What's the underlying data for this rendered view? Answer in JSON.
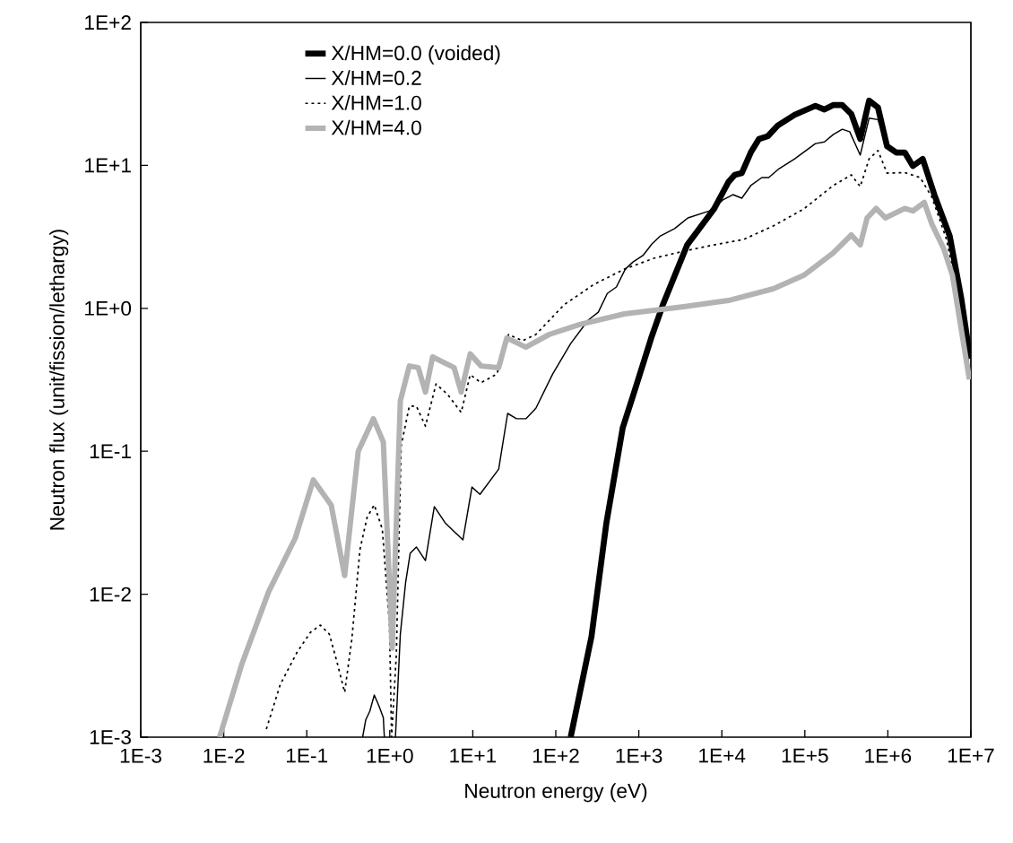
{
  "chart_data": {
    "type": "line",
    "xlabel": "Neutron energy (eV)",
    "ylabel": "Neutron flux (unit/fission/lethargy)",
    "log": "xy",
    "legend": "top left",
    "xlim": [
      0.001,
      10000000
    ],
    "ylim": [
      0.001,
      100
    ],
    "xticks": [
      {
        "value": 0.001,
        "label": "1E-3"
      },
      {
        "value": 0.01,
        "label": "1E-2"
      },
      {
        "value": 0.1,
        "label": "1E-1"
      },
      {
        "value": 1,
        "label": "1E+0"
      },
      {
        "value": 10,
        "label": "1E+1"
      },
      {
        "value": 100,
        "label": "1E+2"
      },
      {
        "value": 1000,
        "label": "1E+3"
      },
      {
        "value": 10000,
        "label": "1E+4"
      },
      {
        "value": 100000,
        "label": "1E+5"
      },
      {
        "value": 1000000,
        "label": "1E+6"
      },
      {
        "value": 10000000,
        "label": "1E+7"
      }
    ],
    "yticks": [
      {
        "value": 0.001,
        "label": "1E-3"
      },
      {
        "value": 0.01,
        "label": "1E-2"
      },
      {
        "value": 0.1,
        "label": "1E-1"
      },
      {
        "value": 1,
        "label": "1E+0"
      },
      {
        "value": 10,
        "label": "1E+1"
      },
      {
        "value": 100,
        "label": "1E+2"
      }
    ],
    "series": [
      {
        "name": "X/HM=0.0 (voided)",
        "color": "#000000",
        "line_style": "solid",
        "x": [
          151,
          269,
          407,
          640,
          881,
          1410,
          1950,
          3830,
          8050,
          12000,
          14300,
          17400,
          22300,
          28000,
          35800,
          47100,
          75500,
          134000,
          172000,
          219000,
          282000,
          363000,
          465000,
          594000,
          760000,
          977000,
          1260000,
          1600000,
          2000000,
          2630000,
          3630000,
          5560000,
          7670000,
          9800000
        ],
        "values": [
          0.001,
          0.00505,
          0.0316,
          0.146,
          0.26,
          0.62,
          1.06,
          2.78,
          4.95,
          7.65,
          8.58,
          8.83,
          12.3,
          15.3,
          16.0,
          19.0,
          22.6,
          26.1,
          24.6,
          26.4,
          26.4,
          22.9,
          15.3,
          28.4,
          25.4,
          13.6,
          12.3,
          12.3,
          9.9,
          11.1,
          6.24,
          3.21,
          1.17,
          0.444
        ]
      },
      {
        "name": "X/HM=0.2",
        "color": "#000000",
        "line_style": "solid",
        "x": [
          0.471,
          0.513,
          0.575,
          0.65,
          0.74,
          0.836,
          0.86,
          1.0,
          1.17,
          1.34,
          1.55,
          1.76,
          2.09,
          2.69,
          3.44,
          4.64,
          7.6,
          9.77,
          12.2,
          20.5,
          26.3,
          33.6,
          43.6,
          57.5,
          91.6,
          151,
          245,
          325,
          417,
          537,
          687,
          851,
          1120,
          1440,
          1820,
          2700,
          3900,
          7250,
          10300,
          13600,
          17400,
          22300,
          30300,
          36700,
          49000,
          75500,
          134000,
          172000,
          219000,
          282000,
          347000,
          465000,
          594000,
          760000,
          977000,
          1260000,
          1600000,
          2000000,
          2630000,
          3630000,
          5560000,
          7670000,
          9800000
        ],
        "values": [
          0.001,
          0.00132,
          0.00152,
          0.00197,
          0.00166,
          0.00137,
          0.001,
          null,
          0.001,
          0.00526,
          0.012,
          0.0193,
          0.0214,
          0.0172,
          0.041,
          0.0316,
          0.024,
          0.0562,
          0.05,
          0.075,
          0.184,
          0.169,
          0.169,
          0.2,
          0.347,
          0.567,
          0.826,
          0.94,
          1.27,
          1.41,
          1.88,
          2.11,
          2.34,
          2.82,
          3.21,
          3.61,
          4.29,
          4.82,
          5.73,
          6.24,
          5.89,
          7.22,
          8.22,
          8.22,
          9.49,
          11.1,
          14.2,
          14.6,
          16.4,
          17.9,
          17.2,
          11.8,
          21.4,
          20.9,
          13.6,
          12.3,
          12.3,
          9.9,
          11.1,
          6.24,
          3.21,
          1.17,
          0.444
        ]
      },
      {
        "name": "X/HM=1.0",
        "color": "#000000",
        "line_style": "dotted",
        "x": [
          0.0326,
          0.048,
          0.0766,
          0.111,
          0.146,
          0.187,
          0.234,
          0.286,
          0.349,
          0.437,
          0.533,
          0.65,
          0.813,
          0.993,
          1.05,
          1.2,
          1.37,
          1.72,
          2.09,
          2.69,
          3.61,
          4.99,
          7.25,
          9.3,
          12.6,
          19.5,
          27,
          39.7,
          57.5,
          126,
          288,
          670,
          1515,
          3470,
          8050,
          18200,
          41700,
          96800,
          219000,
          363000,
          465000,
          594000,
          760000,
          977000,
          1600000,
          2450000,
          3400000,
          5100000,
          7100000,
          9600000
        ],
        "values": [
          0.00114,
          0.00234,
          0.00394,
          0.00542,
          0.00608,
          0.00526,
          0.00327,
          0.00206,
          0.00483,
          0.0205,
          0.0345,
          0.0422,
          0.0285,
          0.00608,
          0.001,
          0.0038,
          0.109,
          0.207,
          0.207,
          0.15,
          0.296,
          0.249,
          0.187,
          0.343,
          0.302,
          0.347,
          0.656,
          0.593,
          0.656,
          1.06,
          1.47,
          1.88,
          2.24,
          2.51,
          2.78,
          3.03,
          3.77,
          4.95,
          7.22,
          8.58,
          7.1,
          11.1,
          12.7,
          8.83,
          8.9,
          8.22,
          5.98,
          3.03,
          1.17,
          0.38
        ]
      },
      {
        "name": "X/HM=4.0",
        "color": "#b3b3b3",
        "line_style": "solid",
        "x": [
          0.0089,
          0.0166,
          0.0347,
          0.0727,
          0.12,
          0.197,
          0.286,
          0.417,
          0.635,
          0.836,
          1.07,
          1.34,
          1.72,
          2.2,
          2.69,
          3.28,
          5.95,
          7.25,
          9.3,
          12.6,
          20.5,
          25.7,
          43.6,
          83,
          193,
          670,
          3470,
          12000,
          41700,
          96800,
          219000,
          363000,
          465000,
          563000,
          724000,
          933000,
          1600000,
          2000000,
          2750000,
          3400000,
          4700000,
          6000000,
          9600000
        ],
        "values": [
          0.001,
          0.00327,
          0.0104,
          0.0247,
          0.063,
          0.042,
          0.0135,
          0.1,
          0.169,
          0.116,
          0.0042,
          0.225,
          0.395,
          0.385,
          0.26,
          0.457,
          0.385,
          0.26,
          0.48,
          0.395,
          0.385,
          0.62,
          0.535,
          0.656,
          0.77,
          0.914,
          1.026,
          1.135,
          1.37,
          1.7,
          2.44,
          3.26,
          2.78,
          4.29,
          5.0,
          4.29,
          5.0,
          4.8,
          5.5,
          3.87,
          2.62,
          1.7,
          0.318
        ]
      }
    ]
  }
}
